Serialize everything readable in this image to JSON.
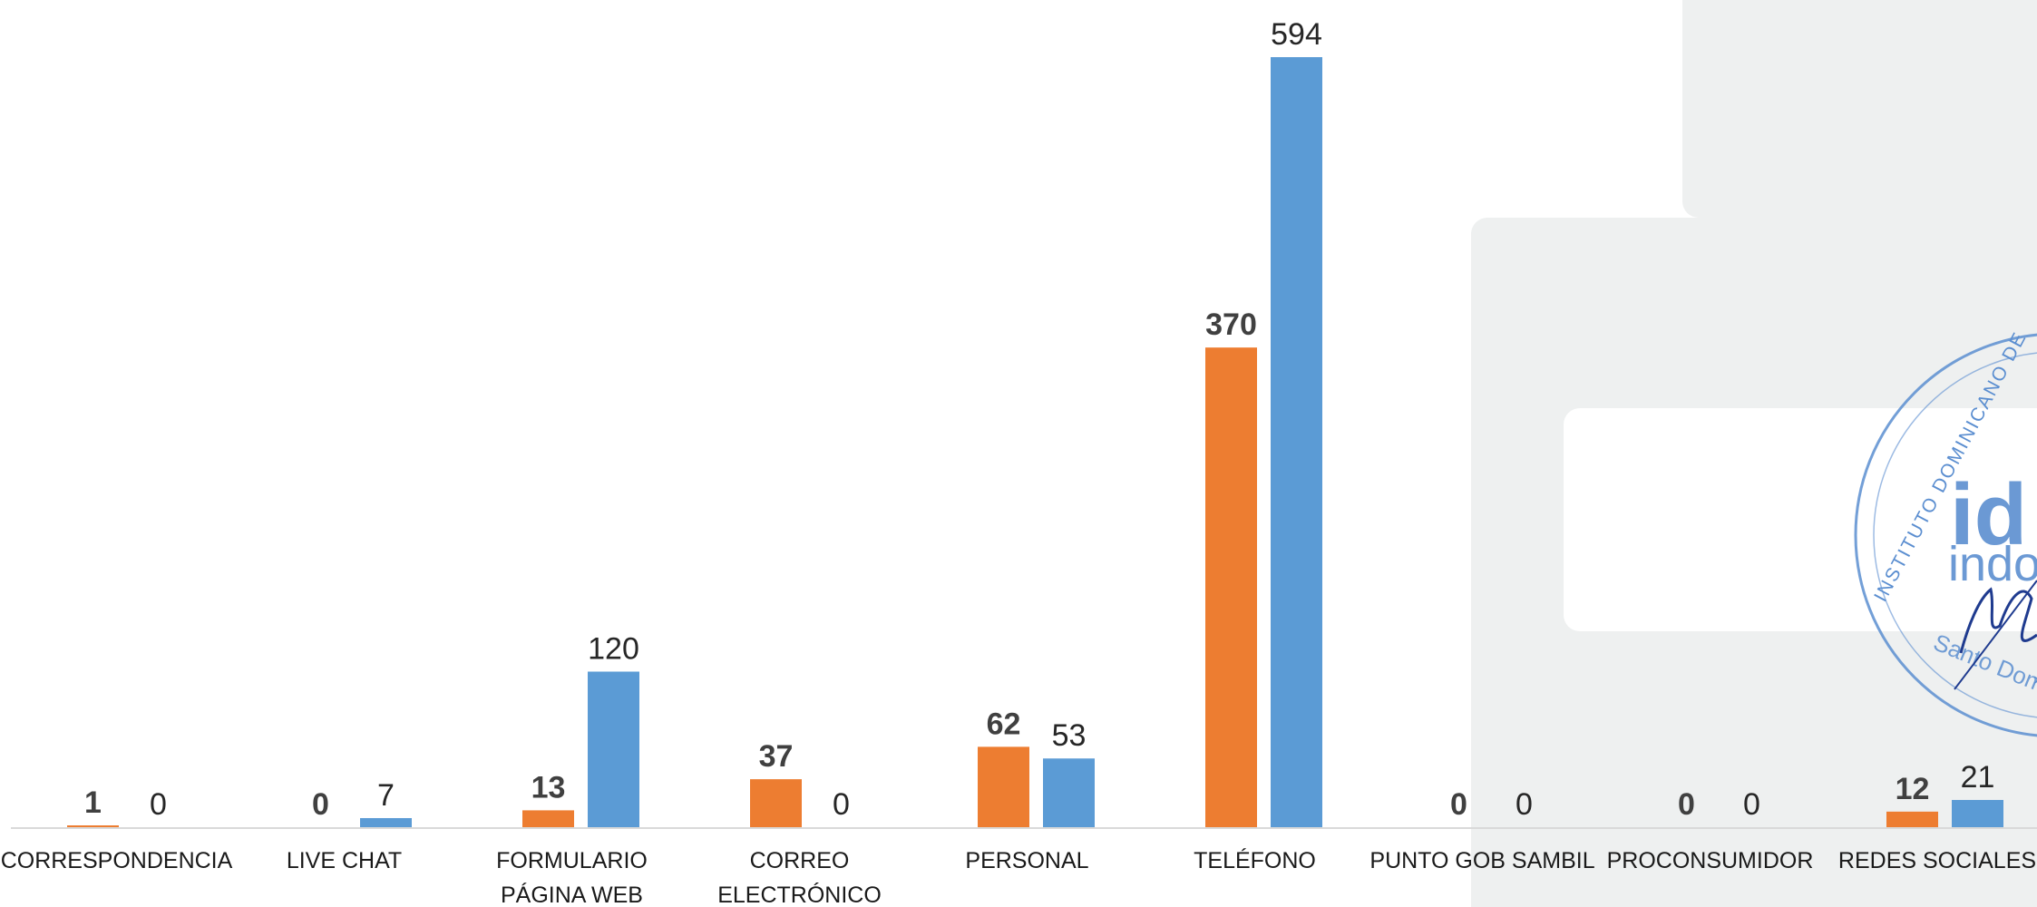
{
  "chart_data": {
    "type": "bar",
    "categories": [
      [
        "CORRESPONDENCIA"
      ],
      [
        "LIVE CHAT"
      ],
      [
        "FORMULARIO",
        "PÁGINA WEB"
      ],
      [
        "CORREO",
        "ELECTRÓNICO"
      ],
      [
        "PERSONAL"
      ],
      [
        "TELÉFONO"
      ],
      [
        "PUNTO GOB SAMBIL"
      ],
      [
        "PROCONSUMIDOR"
      ],
      [
        "REDES SOCIALES"
      ]
    ],
    "series": [
      {
        "color": "#ed7d31",
        "label_style": "bold",
        "values": [
          1,
          0,
          13,
          37,
          62,
          370,
          0,
          0,
          12
        ]
      },
      {
        "color": "#5b9bd5",
        "label_style": "regular",
        "values": [
          0,
          7,
          120,
          0,
          53,
          594,
          0,
          0,
          21
        ]
      }
    ],
    "ylim": [
      0,
      594
    ],
    "grid": false,
    "legend": "none",
    "axis_line_color": "#d9d9d9"
  },
  "seal": {
    "lettering": "INSTITUTO DOMINICANO DE ... Santo Domingo ... idc indocal",
    "color": "#5b8ed0"
  }
}
